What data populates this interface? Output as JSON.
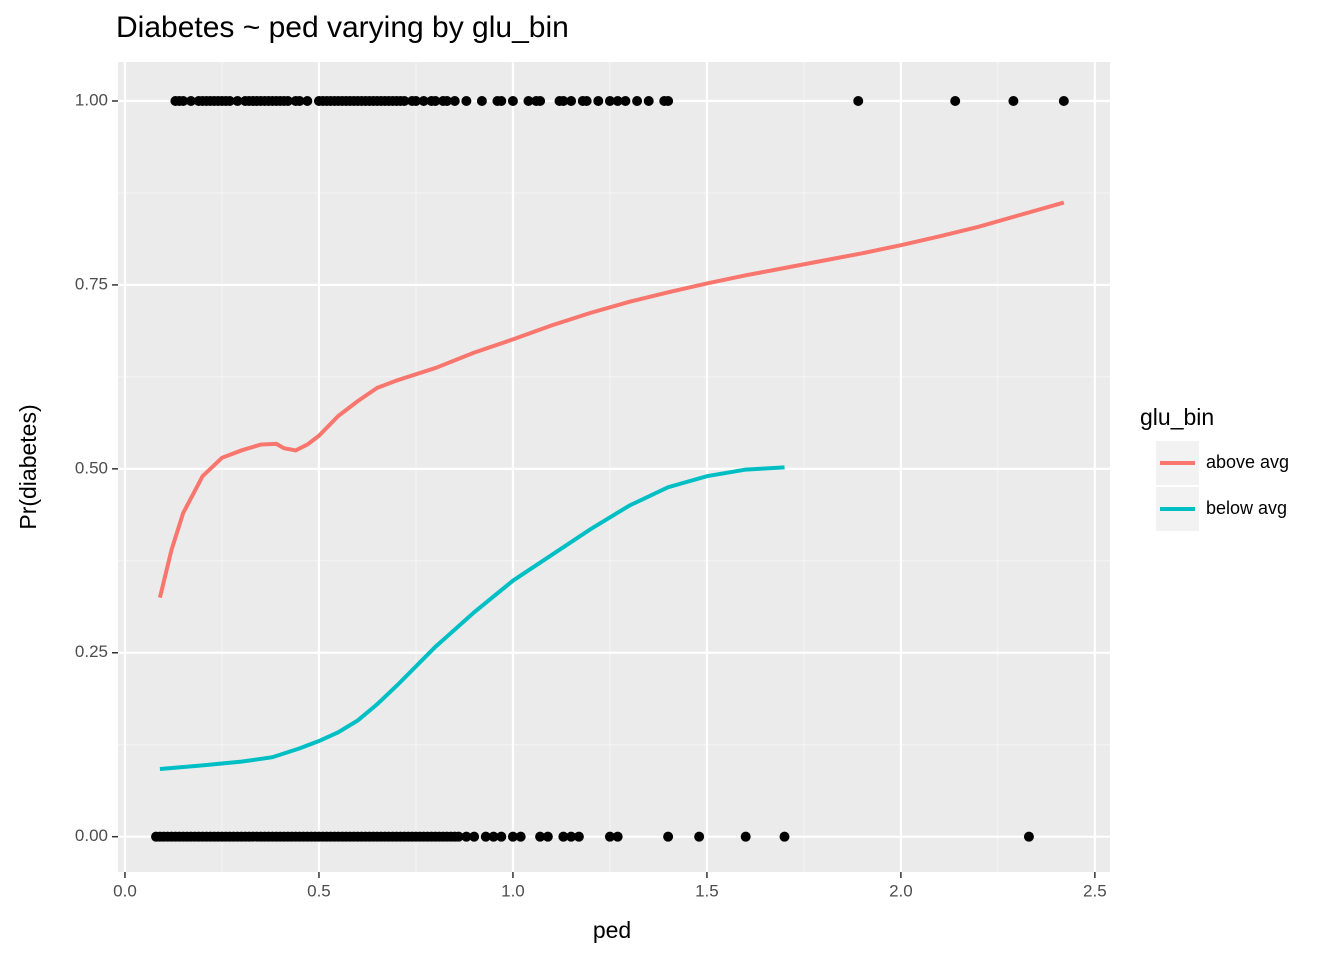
{
  "chart_data": {
    "type": "line",
    "title": "Diabetes ~ ped varying by glu_bin",
    "x_label": "ped",
    "y_label": "Pr(diabetes)",
    "legend_title": "glu_bin",
    "legend": "right",
    "grid": true,
    "xlim": [
      -0.018,
      2.539
    ],
    "ylim": [
      -0.048,
      1.053
    ],
    "xticks": [
      {
        "value": 0,
        "label": "0.0"
      },
      0.5,
      {
        "value": 1,
        "label": "1.0"
      },
      1.5,
      {
        "value": 2,
        "label": "2.0"
      },
      2.5
    ],
    "yticks": [
      {
        "value": 0,
        "label": "0.00"
      },
      0.25,
      {
        "value": 0.5,
        "label": "0.50"
      },
      0.75,
      {
        "value": 1,
        "label": "1.00"
      }
    ],
    "points": [
      {
        "color": "#000000",
        "value": 1,
        "x": [
          0.13,
          0.14,
          0.15,
          0.17,
          0.19,
          0.2,
          0.21,
          0.22,
          0.23,
          0.24,
          0.25,
          0.26,
          0.27,
          0.29,
          0.31,
          0.32,
          0.33,
          0.34,
          0.35,
          0.36,
          0.37,
          0.38,
          0.39,
          0.4,
          0.41,
          0.42,
          0.44,
          0.45,
          0.47,
          0.5,
          0.51,
          0.52,
          0.53,
          0.54,
          0.55,
          0.56,
          0.57,
          0.58,
          0.59,
          0.6,
          0.61,
          0.62,
          0.63,
          0.64,
          0.65,
          0.66,
          0.67,
          0.68,
          0.69,
          0.7,
          0.71,
          0.72,
          0.74,
          0.75,
          0.77,
          0.79,
          0.8,
          0.82,
          0.83,
          0.85,
          0.88,
          0.92,
          0.96,
          0.97,
          1.0,
          1.04,
          1.06,
          1.07,
          1.12,
          1.13,
          1.15,
          1.18,
          1.19,
          1.22,
          1.25,
          1.27,
          1.29,
          1.32,
          1.35,
          1.39,
          1.4,
          1.89,
          2.14,
          2.29,
          2.42
        ]
      },
      {
        "color": "#000000",
        "value": 0,
        "x": [
          0.08,
          0.09,
          0.1,
          0.11,
          0.12,
          0.13,
          0.14,
          0.15,
          0.16,
          0.17,
          0.18,
          0.19,
          0.2,
          0.21,
          0.22,
          0.23,
          0.24,
          0.25,
          0.26,
          0.27,
          0.28,
          0.29,
          0.3,
          0.31,
          0.32,
          0.33,
          0.34,
          0.35,
          0.36,
          0.37,
          0.38,
          0.39,
          0.4,
          0.41,
          0.42,
          0.43,
          0.44,
          0.45,
          0.46,
          0.47,
          0.48,
          0.49,
          0.5,
          0.51,
          0.52,
          0.53,
          0.54,
          0.55,
          0.56,
          0.57,
          0.58,
          0.59,
          0.6,
          0.61,
          0.62,
          0.63,
          0.64,
          0.65,
          0.66,
          0.67,
          0.68,
          0.69,
          0.7,
          0.71,
          0.72,
          0.73,
          0.74,
          0.75,
          0.76,
          0.77,
          0.78,
          0.79,
          0.8,
          0.81,
          0.82,
          0.83,
          0.84,
          0.85,
          0.86,
          0.88,
          0.9,
          0.93,
          0.95,
          0.97,
          1.0,
          1.02,
          1.07,
          1.09,
          1.13,
          1.15,
          1.17,
          1.25,
          1.27,
          1.4,
          1.48,
          1.6,
          1.7,
          2.33
        ]
      }
    ],
    "series": [
      {
        "name": "above avg",
        "color": "#F8766D",
        "x": [
          0.09,
          0.12,
          0.15,
          0.18,
          0.2,
          0.23,
          0.25,
          0.3,
          0.35,
          0.39,
          0.41,
          0.44,
          0.47,
          0.5,
          0.55,
          0.6,
          0.65,
          0.7,
          0.8,
          0.9,
          1.0,
          1.1,
          1.2,
          1.3,
          1.4,
          1.5,
          1.6,
          1.7,
          1.8,
          1.9,
          2.0,
          2.1,
          2.2,
          2.3,
          2.42
        ],
        "values": [
          0.325,
          0.39,
          0.44,
          0.47,
          0.49,
          0.505,
          0.515,
          0.525,
          0.533,
          0.534,
          0.528,
          0.525,
          0.533,
          0.545,
          0.572,
          0.592,
          0.61,
          0.62,
          0.637,
          0.658,
          0.676,
          0.695,
          0.712,
          0.727,
          0.74,
          0.752,
          0.763,
          0.773,
          0.783,
          0.793,
          0.804,
          0.816,
          0.829,
          0.844,
          0.862
        ]
      },
      {
        "name": "below avg",
        "color": "#00BFC4",
        "x": [
          0.09,
          0.2,
          0.3,
          0.38,
          0.45,
          0.5,
          0.55,
          0.6,
          0.65,
          0.7,
          0.8,
          0.9,
          1.0,
          1.1,
          1.2,
          1.3,
          1.4,
          1.5,
          1.6,
          1.7
        ],
        "values": [
          0.092,
          0.097,
          0.102,
          0.108,
          0.12,
          0.13,
          0.142,
          0.158,
          0.18,
          0.205,
          0.258,
          0.305,
          0.348,
          0.383,
          0.418,
          0.45,
          0.475,
          0.49,
          0.499,
          0.502
        ]
      }
    ]
  }
}
